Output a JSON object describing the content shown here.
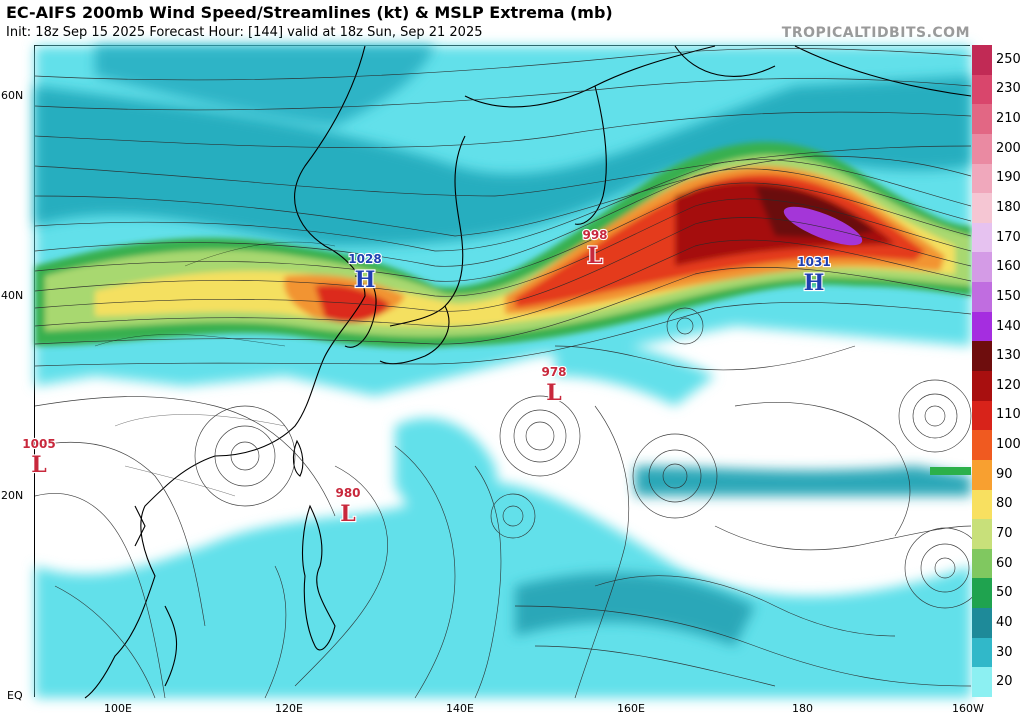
{
  "header": {
    "title": "EC-AIFS 200mb Wind Speed/Streamlines (kt) & MSLP Extrema (mb)",
    "subtitle": "Init: 18z Sep 15 2025   Forecast Hour: [144]   valid at 18z Sun, Sep 21 2025",
    "brand": "TROPICALTIDBITS.COM"
  },
  "axes": {
    "lat_labels": [
      "60N",
      "40N",
      "20N",
      "EQ"
    ],
    "lon_labels": [
      "100E",
      "120E",
      "140E",
      "160E",
      "180",
      "160W"
    ]
  },
  "colorbar": {
    "labels": [
      "250",
      "230",
      "210",
      "200",
      "190",
      "180",
      "170",
      "160",
      "150",
      "140",
      "130",
      "120",
      "110",
      "100",
      "90",
      "80",
      "70",
      "60",
      "50",
      "40",
      "30",
      "20"
    ],
    "colors": [
      "#c12a55",
      "#d9466c",
      "#e26784",
      "#ea8aa2",
      "#f0a8bc",
      "#f5c6d3",
      "#e6c2f0",
      "#d49be6",
      "#c06de0",
      "#a52de0",
      "#6e0d0d",
      "#a80f0f",
      "#d8231a",
      "#f05a20",
      "#f8a030",
      "#f8e060",
      "#c8e07a",
      "#80c860",
      "#1fa34f",
      "#1e8a99",
      "#31b8c9",
      "#8cf0f2"
    ]
  },
  "pressure_centers": [
    {
      "type": "H",
      "value": "1028",
      "color": "#1f3fb0"
    },
    {
      "type": "L",
      "value": "998",
      "color": "#c8283c"
    },
    {
      "type": "H",
      "value": "1031",
      "color": "#1f3fb0"
    },
    {
      "type": "L",
      "value": "978",
      "color": "#c8283c"
    },
    {
      "type": "L",
      "value": "1005",
      "color": "#c8283c"
    },
    {
      "type": "L",
      "value": "980",
      "color": "#c8283c"
    }
  ]
}
